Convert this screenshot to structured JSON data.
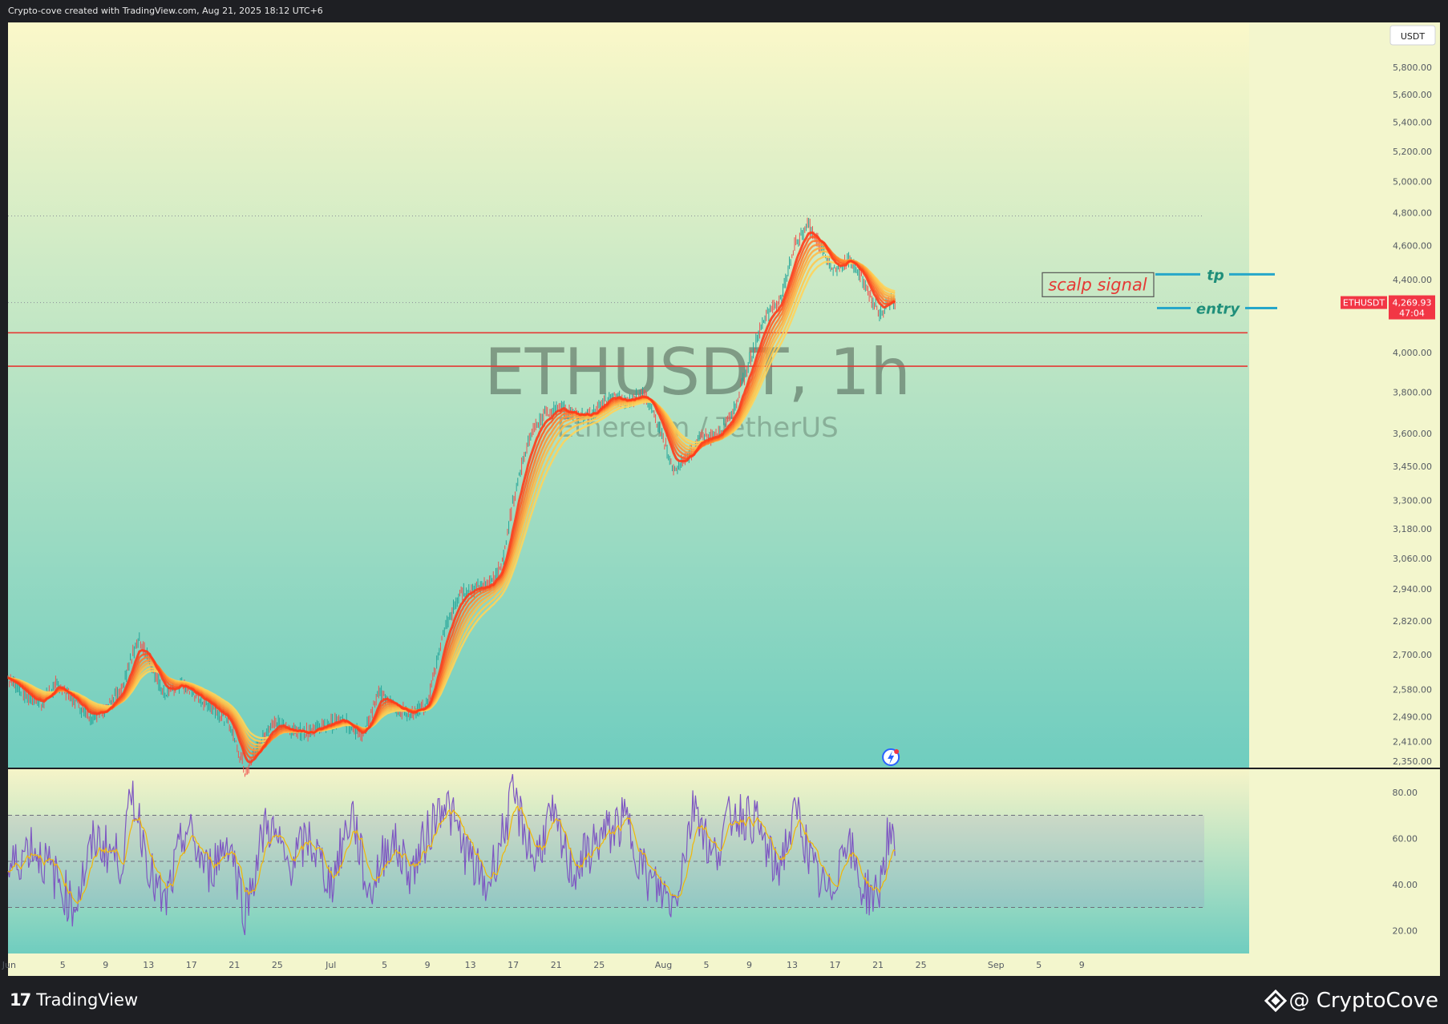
{
  "header": {
    "caption": "Crypto-cove created with TradingView.com, Aug 21, 2025 18:12 UTC+6"
  },
  "watermark": {
    "symbol": "ETHUSDT, 1h",
    "description": "Ethereum / TetherUS"
  },
  "currency_badge": "USDT",
  "price_label": {
    "symbol": "ETHUSDT",
    "price": "4,269.93",
    "countdown": "47:04"
  },
  "annotations": {
    "signal_box": "scalp signal",
    "tp_label": "tp",
    "entry_label": "entry"
  },
  "footer": {
    "tv_brand": "TradingView",
    "tv_mark": "17",
    "author": "@ CryptoCove"
  },
  "colors": {
    "up_candle": "#26a69a",
    "down_candle": "#ef5350",
    "ribbon_fast": "#ff3d1f",
    "ribbon_slow": "#ffc24a",
    "zone_line": "#e53935",
    "tp_entry_line": "#26a7c9",
    "label_text": "#1f8f7a",
    "signal_text": "#e53935",
    "rsi_line": "#7e57c2",
    "rsi_signal": "#f2b705",
    "price_badge": "#f23645"
  },
  "chart_data": [
    {
      "type": "line",
      "title": "ETHUSDT, 1h",
      "subtitle": "Ethereum / TetherUS",
      "ylabel": "USDT",
      "y_scale": "log",
      "ylim": [
        2330,
        6150
      ],
      "y_ticks": [
        {
          "value": 5800,
          "label": "5,800.00"
        },
        {
          "value": 5600,
          "label": "5,600.00"
        },
        {
          "value": 5400,
          "label": "5,400.00"
        },
        {
          "value": 5200,
          "label": "5,200.00"
        },
        {
          "value": 5000,
          "label": "5,000.00"
        },
        {
          "value": 4800,
          "label": "4,800.00"
        },
        {
          "value": 4600,
          "label": "4,600.00"
        },
        {
          "value": 4400,
          "label": "4,400.00"
        },
        {
          "value": 4000,
          "label": "4,000.00"
        },
        {
          "value": 3800,
          "label": "3,800.00"
        },
        {
          "value": 3600,
          "label": "3,600.00"
        },
        {
          "value": 3450,
          "label": "3,450.00"
        },
        {
          "value": 3300,
          "label": "3,300.00"
        },
        {
          "value": 3180,
          "label": "3,180.00"
        },
        {
          "value": 3060,
          "label": "3,060.00"
        },
        {
          "value": 2940,
          "label": "2,940.00"
        },
        {
          "value": 2820,
          "label": "2,820.00"
        },
        {
          "value": 2700,
          "label": "2,700.00"
        },
        {
          "value": 2580,
          "label": "2,580.00"
        },
        {
          "value": 2490,
          "label": "2,490.00"
        },
        {
          "value": 2410,
          "label": "2,410.00"
        },
        {
          "value": 2350,
          "label": "2,350.00"
        }
      ],
      "x_ticks": [
        {
          "day": 30,
          "label": "Jun"
        },
        {
          "day": 35,
          "label": "5"
        },
        {
          "day": 39,
          "label": "9"
        },
        {
          "day": 43,
          "label": "13"
        },
        {
          "day": 47,
          "label": "17"
        },
        {
          "day": 51,
          "label": "21"
        },
        {
          "day": 55,
          "label": "25"
        },
        {
          "day": 60,
          "label": "Jul"
        },
        {
          "day": 65,
          "label": "5"
        },
        {
          "day": 69,
          "label": "9"
        },
        {
          "day": 73,
          "label": "13"
        },
        {
          "day": 77,
          "label": "17"
        },
        {
          "day": 81,
          "label": "21"
        },
        {
          "day": 85,
          "label": "25"
        },
        {
          "day": 91,
          "label": "Aug"
        },
        {
          "day": 95,
          "label": "5"
        },
        {
          "day": 99,
          "label": "9"
        },
        {
          "day": 103,
          "label": "13"
        },
        {
          "day": 107,
          "label": "17"
        },
        {
          "day": 111,
          "label": "21"
        },
        {
          "day": 115,
          "label": "25"
        },
        {
          "day": 122,
          "label": "Sep"
        },
        {
          "day": 126,
          "label": "5"
        },
        {
          "day": 130,
          "label": "9"
        }
      ],
      "x_day_range": [
        29.9,
        145.6
      ],
      "grid": false,
      "series": [
        {
          "role": "price",
          "points": [
            {
              "day": 29.9,
              "value": 2620
            },
            {
              "day": 31.5,
              "value": 2560
            },
            {
              "day": 33.0,
              "value": 2535
            },
            {
              "day": 34.5,
              "value": 2600
            },
            {
              "day": 36.0,
              "value": 2545
            },
            {
              "day": 37.5,
              "value": 2490
            },
            {
              "day": 39.0,
              "value": 2520
            },
            {
              "day": 40.5,
              "value": 2575
            },
            {
              "day": 42.0,
              "value": 2760
            },
            {
              "day": 43.3,
              "value": 2660
            },
            {
              "day": 44.5,
              "value": 2560
            },
            {
              "day": 46.0,
              "value": 2600
            },
            {
              "day": 47.5,
              "value": 2555
            },
            {
              "day": 49.0,
              "value": 2520
            },
            {
              "day": 50.5,
              "value": 2470
            },
            {
              "day": 52.0,
              "value": 2320
            },
            {
              "day": 53.0,
              "value": 2380
            },
            {
              "day": 54.5,
              "value": 2470
            },
            {
              "day": 56.0,
              "value": 2450
            },
            {
              "day": 57.5,
              "value": 2440
            },
            {
              "day": 59.0,
              "value": 2455
            },
            {
              "day": 61.0,
              "value": 2480
            },
            {
              "day": 63.0,
              "value": 2430
            },
            {
              "day": 64.5,
              "value": 2570
            },
            {
              "day": 66.0,
              "value": 2520
            },
            {
              "day": 67.5,
              "value": 2500
            },
            {
              "day": 69.0,
              "value": 2530
            },
            {
              "day": 70.5,
              "value": 2780
            },
            {
              "day": 72.0,
              "value": 2920
            },
            {
              "day": 73.5,
              "value": 2950
            },
            {
              "day": 75.0,
              "value": 2960
            },
            {
              "day": 76.0,
              "value": 3050
            },
            {
              "day": 77.0,
              "value": 3300
            },
            {
              "day": 78.5,
              "value": 3580
            },
            {
              "day": 80.0,
              "value": 3700
            },
            {
              "day": 81.5,
              "value": 3720
            },
            {
              "day": 83.0,
              "value": 3680
            },
            {
              "day": 84.5,
              "value": 3700
            },
            {
              "day": 86.0,
              "value": 3780
            },
            {
              "day": 87.5,
              "value": 3750
            },
            {
              "day": 89.0,
              "value": 3800
            },
            {
              "day": 90.5,
              "value": 3650
            },
            {
              "day": 92.0,
              "value": 3420
            },
            {
              "day": 93.0,
              "value": 3480
            },
            {
              "day": 94.5,
              "value": 3580
            },
            {
              "day": 96.0,
              "value": 3600
            },
            {
              "day": 97.5,
              "value": 3700
            },
            {
              "day": 99.0,
              "value": 3950
            },
            {
              "day": 100.5,
              "value": 4200
            },
            {
              "day": 102.0,
              "value": 4300
            },
            {
              "day": 103.3,
              "value": 4620
            },
            {
              "day": 104.5,
              "value": 4720
            },
            {
              "day": 105.8,
              "value": 4580
            },
            {
              "day": 107.0,
              "value": 4440
            },
            {
              "day": 108.2,
              "value": 4520
            },
            {
              "day": 109.5,
              "value": 4420
            },
            {
              "day": 110.5,
              "value": 4270
            },
            {
              "day": 111.3,
              "value": 4200
            },
            {
              "day": 112.0,
              "value": 4290
            },
            {
              "day": 112.6,
              "value": 4270
            }
          ]
        }
      ],
      "horizontal_lines": [
        {
          "value": 4780,
          "style": "dotted",
          "role": "recent high"
        },
        {
          "value": 4269.93,
          "style": "dotted",
          "role": "last price"
        },
        {
          "value": 4105,
          "style": "solid",
          "role": "zone top"
        },
        {
          "value": 3930,
          "style": "solid",
          "role": "zone bottom"
        }
      ],
      "annotations": [
        {
          "text": "scalp signal",
          "type": "box"
        },
        {
          "text": "tp",
          "value": 4430
        },
        {
          "text": "entry",
          "value": 4275
        }
      ],
      "last_price": {
        "symbol": "ETHUSDT",
        "value": 4269.93,
        "countdown": "47:04"
      }
    },
    {
      "type": "line",
      "title": "",
      "ylim": [
        10,
        90
      ],
      "y_ticks": [
        {
          "value": 80,
          "label": "80.00"
        },
        {
          "value": 60,
          "label": "60.00"
        },
        {
          "value": 40,
          "label": "40.00"
        },
        {
          "value": 20,
          "label": "20.00"
        }
      ],
      "bands": [
        70,
        50,
        30
      ],
      "x_day_range": [
        29.9,
        145.6
      ],
      "series": [
        {
          "role": "oscillator",
          "points": [
            {
              "day": 29.9,
              "value": 45
            },
            {
              "day": 32.0,
              "value": 58
            },
            {
              "day": 34.5,
              "value": 42
            },
            {
              "day": 36.0,
              "value": 30
            },
            {
              "day": 38.0,
              "value": 60
            },
            {
              "day": 40.5,
              "value": 50
            },
            {
              "day": 41.5,
              "value": 80
            },
            {
              "day": 43.5,
              "value": 40
            },
            {
              "day": 44.5,
              "value": 30
            },
            {
              "day": 46.5,
              "value": 65
            },
            {
              "day": 48.5,
              "value": 45
            },
            {
              "day": 50.5,
              "value": 60
            },
            {
              "day": 52.0,
              "value": 28
            },
            {
              "day": 54.0,
              "value": 68
            },
            {
              "day": 56.0,
              "value": 48
            },
            {
              "day": 58.0,
              "value": 60
            },
            {
              "day": 60.0,
              "value": 40
            },
            {
              "day": 62.0,
              "value": 72
            },
            {
              "day": 63.5,
              "value": 35
            },
            {
              "day": 65.5,
              "value": 60
            },
            {
              "day": 67.5,
              "value": 45
            },
            {
              "day": 70.5,
              "value": 78
            },
            {
              "day": 72.5,
              "value": 55
            },
            {
              "day": 74.5,
              "value": 38
            },
            {
              "day": 77.0,
              "value": 78
            },
            {
              "day": 79.0,
              "value": 50
            },
            {
              "day": 80.5,
              "value": 70
            },
            {
              "day": 82.5,
              "value": 45
            },
            {
              "day": 85.0,
              "value": 60
            },
            {
              "day": 87.5,
              "value": 68
            },
            {
              "day": 89.5,
              "value": 42
            },
            {
              "day": 92.0,
              "value": 32
            },
            {
              "day": 94.0,
              "value": 78
            },
            {
              "day": 95.5,
              "value": 50
            },
            {
              "day": 97.5,
              "value": 72
            },
            {
              "day": 99.5,
              "value": 68
            },
            {
              "day": 101.5,
              "value": 45
            },
            {
              "day": 103.5,
              "value": 72
            },
            {
              "day": 105.0,
              "value": 45
            },
            {
              "day": 106.5,
              "value": 34
            },
            {
              "day": 108.0,
              "value": 62
            },
            {
              "day": 109.5,
              "value": 38
            },
            {
              "day": 111.0,
              "value": 35
            },
            {
              "day": 112.0,
              "value": 63
            },
            {
              "day": 112.6,
              "value": 50
            }
          ]
        }
      ]
    }
  ]
}
